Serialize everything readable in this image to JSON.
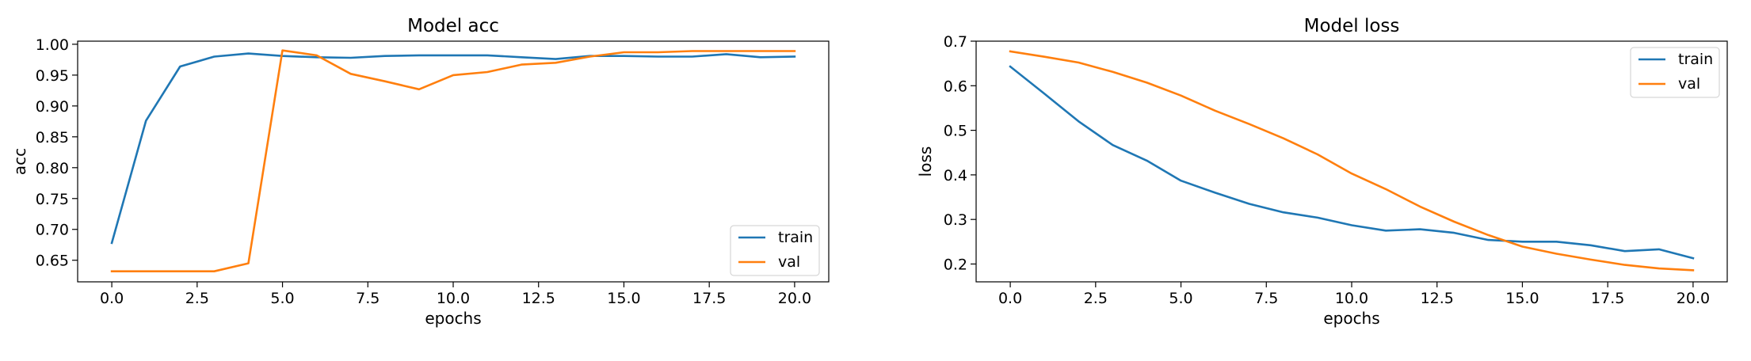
{
  "chart_data": [
    {
      "type": "line",
      "title": "Model acc",
      "xlabel": "epochs",
      "ylabel": "acc",
      "xlim": [
        -1.0,
        21.0
      ],
      "ylim": [
        0.615,
        1.005
      ],
      "xticks": [
        0.0,
        2.5,
        5.0,
        7.5,
        10.0,
        12.5,
        15.0,
        17.5,
        20.0
      ],
      "xtick_labels": [
        "0.0",
        "2.5",
        "5.0",
        "7.5",
        "10.0",
        "12.5",
        "15.0",
        "17.5",
        "20.0"
      ],
      "yticks": [
        0.65,
        0.7,
        0.75,
        0.8,
        0.85,
        0.9,
        0.95,
        1.0
      ],
      "ytick_labels": [
        "0.65",
        "0.70",
        "0.75",
        "0.80",
        "0.85",
        "0.90",
        "0.95",
        "1.00"
      ],
      "legend_position": "lower-right",
      "x": [
        0,
        1,
        2,
        3,
        4,
        5,
        6,
        7,
        8,
        9,
        10,
        11,
        12,
        13,
        14,
        15,
        16,
        17,
        18,
        19,
        20
      ],
      "series": [
        {
          "name": "train",
          "color": "#1f77b4",
          "values": [
            0.678,
            0.876,
            0.964,
            0.98,
            0.985,
            0.981,
            0.979,
            0.978,
            0.981,
            0.982,
            0.982,
            0.982,
            0.979,
            0.976,
            0.981,
            0.981,
            0.98,
            0.98,
            0.984,
            0.979,
            0.98
          ]
        },
        {
          "name": "val",
          "color": "#ff7f0e",
          "values": [
            0.632,
            0.632,
            0.632,
            0.632,
            0.645,
            0.99,
            0.982,
            0.952,
            0.94,
            0.927,
            0.95,
            0.955,
            0.967,
            0.97,
            0.98,
            0.987,
            0.987,
            0.989,
            0.989,
            0.989,
            0.989
          ]
        }
      ]
    },
    {
      "type": "line",
      "title": "Model loss",
      "xlabel": "epochs",
      "ylabel": "loss",
      "xlim": [
        -1.0,
        21.0
      ],
      "ylim": [
        0.16,
        0.7
      ],
      "xticks": [
        0.0,
        2.5,
        5.0,
        7.5,
        10.0,
        12.5,
        15.0,
        17.5,
        20.0
      ],
      "xtick_labels": [
        "0.0",
        "2.5",
        "5.0",
        "7.5",
        "10.0",
        "12.5",
        "15.0",
        "17.5",
        "20.0"
      ],
      "yticks": [
        0.2,
        0.3,
        0.4,
        0.5,
        0.6,
        0.7
      ],
      "ytick_labels": [
        "0.2",
        "0.3",
        "0.4",
        "0.5",
        "0.6",
        "0.7"
      ],
      "legend_position": "upper-right",
      "x": [
        0,
        1,
        2,
        3,
        4,
        5,
        6,
        7,
        8,
        9,
        10,
        11,
        12,
        13,
        14,
        15,
        16,
        17,
        18,
        19,
        20
      ],
      "series": [
        {
          "name": "train",
          "color": "#1f77b4",
          "values": [
            0.643,
            0.582,
            0.52,
            0.467,
            0.432,
            0.387,
            0.36,
            0.335,
            0.316,
            0.304,
            0.287,
            0.275,
            0.278,
            0.27,
            0.254,
            0.25,
            0.25,
            0.242,
            0.229,
            0.233,
            0.213
          ]
        },
        {
          "name": "val",
          "color": "#ff7f0e",
          "values": [
            0.677,
            0.665,
            0.652,
            0.631,
            0.607,
            0.578,
            0.544,
            0.514,
            0.482,
            0.446,
            0.403,
            0.368,
            0.329,
            0.295,
            0.265,
            0.239,
            0.223,
            0.21,
            0.198,
            0.19,
            0.186
          ]
        }
      ]
    }
  ]
}
